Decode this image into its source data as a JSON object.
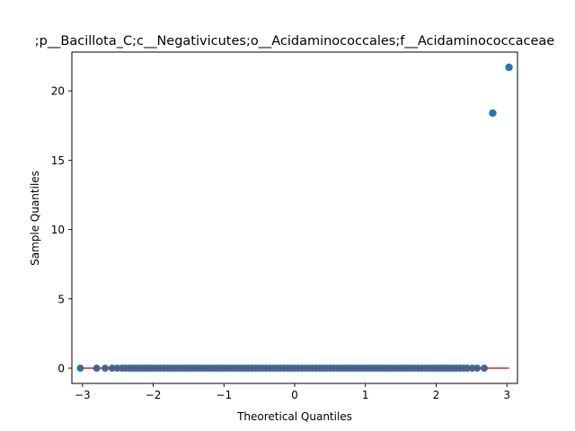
{
  "chart_data": {
    "type": "scatter",
    "title": ";p__Bacillota_C;c__Negativicutes;o__Acidaminococcales;f__Acidaminococcaceae",
    "xlabel": "Theoretical Quantiles",
    "ylabel": "Sample Quantiles",
    "xlim": [
      -3.15,
      3.15
    ],
    "ylim": [
      -1.1,
      22.8
    ],
    "xticks": [
      -3,
      -2,
      -1,
      0,
      1,
      2,
      3
    ],
    "yticks": [
      0,
      5,
      10,
      15,
      20
    ],
    "grid": false,
    "point_color": "#1f77b4",
    "line_color": "#d62728",
    "reference_line": {
      "x": [
        -3.03,
        3.03
      ],
      "y": [
        0,
        0
      ]
    },
    "outliers": [
      {
        "x": 2.8,
        "y": 18.4
      },
      {
        "x": 3.03,
        "y": 21.7
      }
    ],
    "zero_points_x": [
      -3.03,
      -2.8,
      -2.68,
      -2.58,
      -2.51,
      -2.44,
      -2.39,
      -2.34,
      -2.29,
      -2.25,
      -2.2,
      -2.16,
      -2.12,
      -2.08,
      -2.04,
      -2.0,
      -1.95,
      -1.9,
      -1.85,
      -1.8,
      -1.75,
      -1.7,
      -1.65,
      -1.6,
      -1.55,
      -1.5,
      -1.45,
      -1.4,
      -1.35,
      -1.3,
      -1.25,
      -1.2,
      -1.15,
      -1.1,
      -1.05,
      -1.0,
      -0.95,
      -0.9,
      -0.85,
      -0.8,
      -0.75,
      -0.7,
      -0.65,
      -0.6,
      -0.55,
      -0.5,
      -0.45,
      -0.4,
      -0.35,
      -0.3,
      -0.25,
      -0.2,
      -0.15,
      -0.1,
      -0.05,
      0.0,
      0.05,
      0.1,
      0.15,
      0.2,
      0.25,
      0.3,
      0.35,
      0.4,
      0.45,
      0.5,
      0.55,
      0.6,
      0.65,
      0.7,
      0.75,
      0.8,
      0.85,
      0.9,
      0.95,
      1.0,
      1.05,
      1.1,
      1.15,
      1.2,
      1.25,
      1.3,
      1.35,
      1.4,
      1.45,
      1.5,
      1.55,
      1.6,
      1.65,
      1.7,
      1.75,
      1.8,
      1.85,
      1.9,
      1.95,
      2.0,
      2.04,
      2.08,
      2.12,
      2.16,
      2.2,
      2.25,
      2.29,
      2.34,
      2.39,
      2.44,
      2.51,
      2.58,
      2.68
    ]
  }
}
